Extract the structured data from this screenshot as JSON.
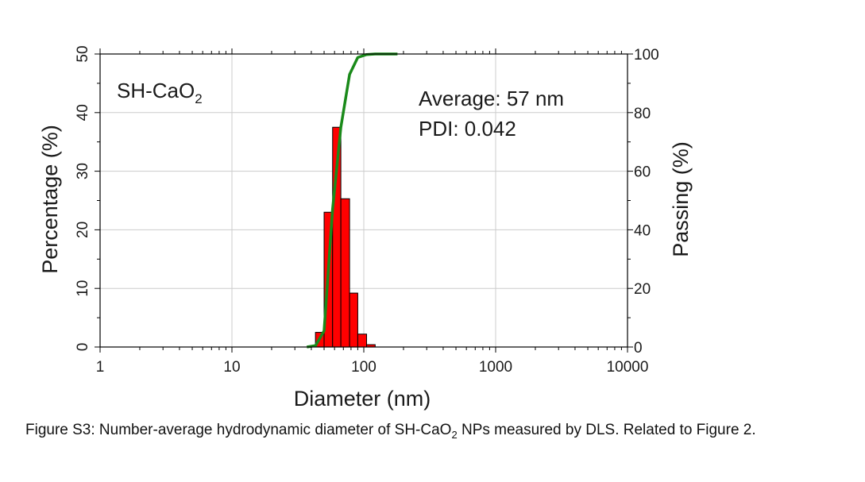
{
  "chart_data": {
    "type": "bar",
    "sample_label": "SH-CaO",
    "sample_label_subscript": "2",
    "annotations": [
      "Average: 57 nm",
      "PDI: 0.042"
    ],
    "xlabel": "Diameter (nm)",
    "ylabel_left": "Percentage (%)",
    "ylabel_right": "Passing (%)",
    "x_scale": "log",
    "xlim": [
      1,
      10000
    ],
    "x_ticks": [
      1,
      10,
      100,
      1000,
      10000
    ],
    "x_tick_labels": [
      "1",
      "10",
      "100",
      "1000",
      "10000"
    ],
    "ylim_left": [
      0,
      50
    ],
    "y_ticks_left": [
      0,
      10,
      20,
      30,
      40,
      50
    ],
    "ylim_right": [
      0,
      100
    ],
    "y_ticks_right": [
      0,
      20,
      40,
      60,
      80,
      100
    ],
    "grid": true,
    "bar_color": "#ff0000",
    "line_color": "#1a8a1a",
    "bars": [
      {
        "lo": 43,
        "hi": 50,
        "value": 2.5
      },
      {
        "lo": 50,
        "hi": 58,
        "value": 23
      },
      {
        "lo": 58,
        "hi": 67,
        "value": 37.5
      },
      {
        "lo": 67,
        "hi": 78,
        "value": 25.3
      },
      {
        "lo": 78,
        "hi": 90,
        "value": 9.2
      },
      {
        "lo": 90,
        "hi": 105,
        "value": 2.2
      },
      {
        "lo": 105,
        "hi": 122,
        "value": 0.4
      }
    ],
    "series": [
      {
        "x": [
          37,
          43,
          50,
          58,
          67,
          78,
          90,
          105,
          122,
          180
        ],
        "y": [
          0,
          0.5,
          5.5,
          47,
          75,
          93,
          98.8,
          99.8,
          100,
          100
        ]
      }
    ]
  },
  "caption": {
    "prefix": "Figure S3: Number-average hydrodynamic diameter of SH-CaO",
    "subscript": "2",
    "suffix": " NPs measured by DLS. Related to Figure 2."
  }
}
